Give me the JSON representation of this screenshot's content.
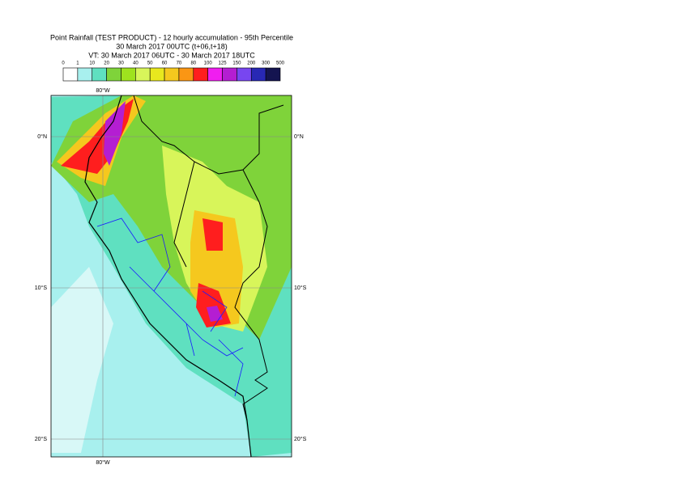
{
  "title_lines": [
    "Point Rainfall (TEST PRODUCT) - 12 hourly accumulation - 95th Percentile",
    "30 March 2017 00UTC (t+06,t+18)",
    "VT: 30 March 2017 06UTC - 30 March 2017 18UTC"
  ],
  "legend": {
    "breaks": [
      0,
      1,
      10,
      20,
      30,
      40,
      50,
      60,
      70,
      80,
      100,
      125,
      150,
      200,
      300,
      500
    ],
    "colors": [
      "#ffffff",
      "#a8f0ee",
      "#5fe0c0",
      "#7fd33a",
      "#9fe21e",
      "#d8f55a",
      "#e8e81e",
      "#f5c81e",
      "#fa9614",
      "#ff1e1e",
      "#f01ef0",
      "#b41ed2",
      "#7846f0",
      "#2828b4",
      "#141450"
    ]
  },
  "map": {
    "lon_labels": [
      "80°W"
    ],
    "lat_labels": [
      "0°N",
      "10°S",
      "20°S"
    ]
  }
}
